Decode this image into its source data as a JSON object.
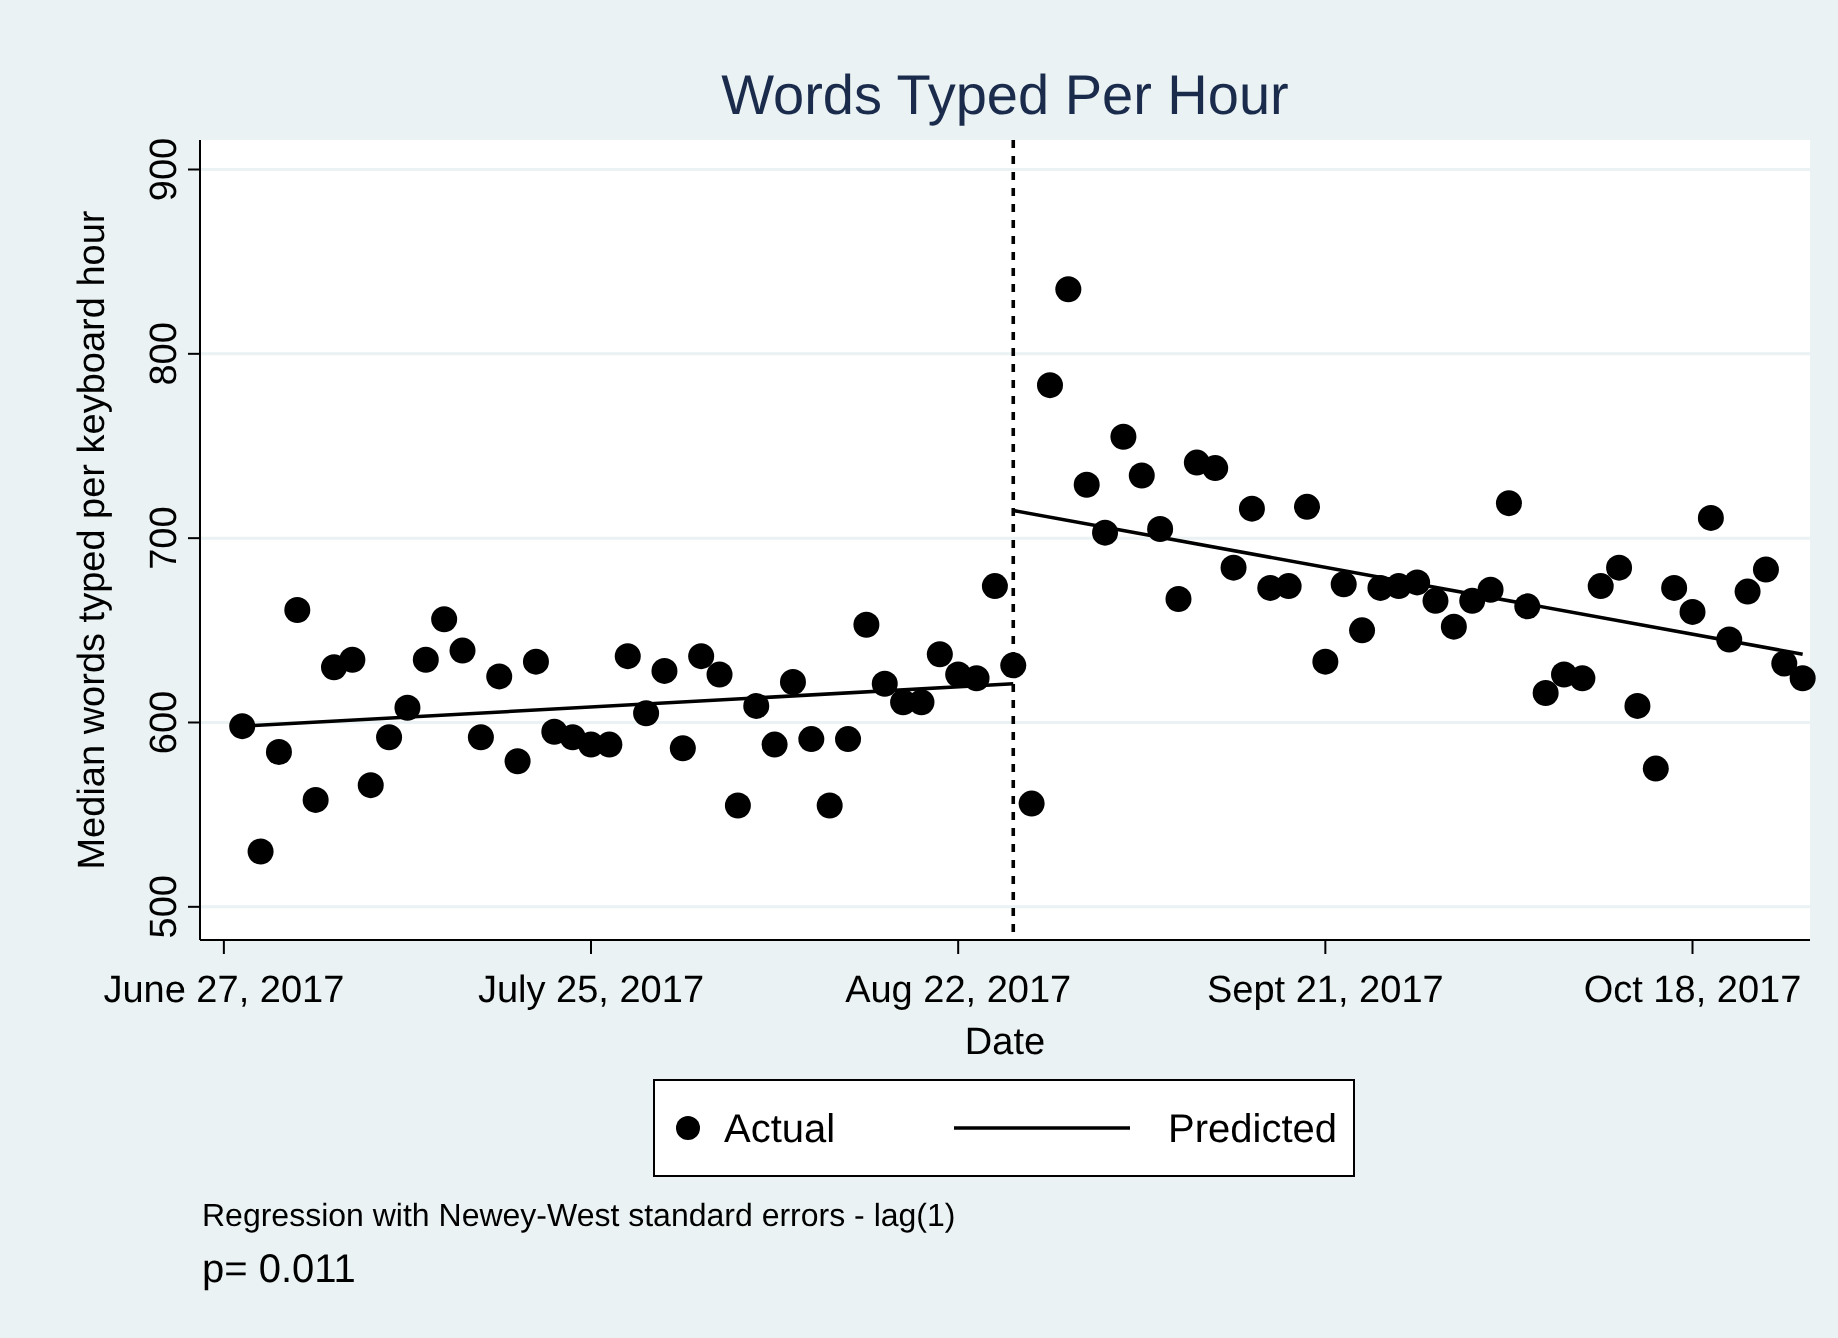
{
  "chart_data": {
    "type": "scatter",
    "title": "Words Typed Per Hour",
    "xlabel": "Date",
    "ylabel": "Median words typed per keyboard hour",
    "categories": [
      "June 27, 2017",
      null,
      null,
      null,
      null,
      null,
      null,
      null,
      null,
      null,
      null,
      null,
      null,
      null,
      null,
      null,
      null,
      null,
      null,
      null,
      "July 25, 2017",
      null,
      null,
      null,
      null,
      null,
      null,
      null,
      null,
      null,
      null,
      null,
      null,
      null,
      null,
      null,
      null,
      null,
      null,
      null,
      "Aug 22, 2017",
      null,
      null,
      null,
      null,
      null,
      null,
      null,
      null,
      null,
      null,
      null,
      null,
      null,
      null,
      null,
      null,
      null,
      null,
      null,
      "Sept 21, 2017",
      null,
      null,
      null,
      null,
      null,
      null,
      null,
      null,
      null,
      null,
      null,
      null,
      null,
      null,
      null,
      null,
      null,
      null,
      null,
      "Oct 18, 2017",
      null,
      null,
      null,
      null,
      null,
      null
    ],
    "ylim": [
      482,
      916
    ],
    "yticks": [
      500,
      600,
      700,
      800,
      900
    ],
    "grid": "y",
    "legend": "bottom",
    "marker": "circle",
    "series": [
      {
        "name": "Actual",
        "color": "#000000",
        "values": [
          null,
          598,
          530,
          584,
          661,
          558,
          630,
          634,
          566,
          592,
          608,
          634,
          656,
          639,
          592,
          625,
          579,
          633,
          595,
          592,
          588,
          588,
          636,
          605,
          628,
          586,
          636,
          626,
          555,
          609,
          588,
          622,
          591,
          555,
          591,
          653,
          621,
          611,
          611,
          637,
          626,
          624,
          674,
          631,
          556,
          783,
          835,
          729,
          703,
          755,
          734,
          705,
          667,
          741,
          738,
          684,
          716,
          673,
          674,
          717,
          633,
          675,
          650,
          673,
          674,
          676,
          666,
          652,
          666,
          672,
          719,
          663,
          616,
          626,
          624,
          674,
          684,
          609,
          575,
          673,
          660,
          711,
          645,
          671,
          683,
          632,
          624
        ]
      },
      {
        "name": "Predicted",
        "type": "line",
        "color": "#000000",
        "marker": "none",
        "line_style": "solid",
        "values": [
          null,
          598,
          null,
          null,
          null,
          null,
          null,
          null,
          null,
          null,
          null,
          null,
          null,
          null,
          null,
          null,
          null,
          null,
          null,
          null,
          null,
          null,
          null,
          null,
          null,
          null,
          null,
          null,
          null,
          null,
          null,
          null,
          null,
          null,
          null,
          null,
          null,
          null,
          null,
          null,
          null,
          null,
          null,
          621,
          null,
          null,
          null,
          null,
          null,
          null,
          null,
          null,
          null,
          null,
          null,
          null,
          null,
          null,
          null,
          null,
          null,
          null,
          null,
          null,
          null,
          null,
          null,
          null,
          null,
          null,
          null,
          null,
          null,
          null,
          null,
          null,
          null,
          null,
          null,
          null,
          null,
          null,
          null,
          null,
          null,
          null,
          null
        ]
      },
      {
        "type": "line",
        "color": "#000000",
        "marker": "none",
        "line_style": "solid",
        "values": [
          null,
          null,
          null,
          null,
          null,
          null,
          null,
          null,
          null,
          null,
          null,
          null,
          null,
          null,
          null,
          null,
          null,
          null,
          null,
          null,
          null,
          null,
          null,
          null,
          null,
          null,
          null,
          null,
          null,
          null,
          null,
          null,
          null,
          null,
          null,
          null,
          null,
          null,
          null,
          null,
          null,
          null,
          null,
          715,
          null,
          null,
          null,
          null,
          null,
          null,
          null,
          null,
          null,
          null,
          null,
          null,
          null,
          null,
          null,
          null,
          null,
          null,
          null,
          null,
          null,
          null,
          null,
          null,
          null,
          null,
          null,
          null,
          null,
          null,
          null,
          null,
          null,
          null,
          null,
          null,
          null,
          null,
          null,
          null,
          null,
          null,
          637
        ]
      }
    ],
    "annotations": [
      "Regression with Newey-West standard errors - lag(1)",
      "p= 0.011"
    ]
  }
}
